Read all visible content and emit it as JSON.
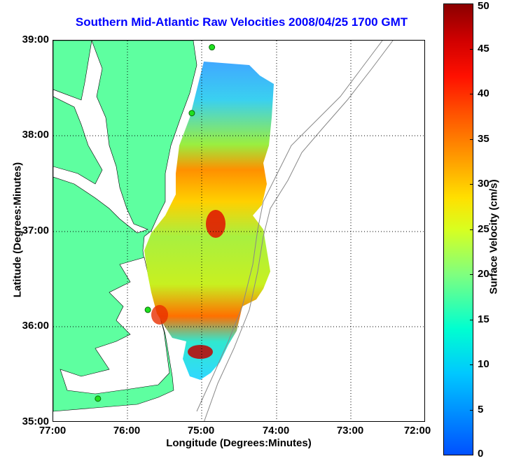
{
  "title": "Southern Mid-Atlantic Raw Velocities 2008/04/25 1700 GMT",
  "axes": {
    "xlabel": "Longitude (Degrees:Minutes)",
    "ylabel": "Latitude (Degrees:Minutes)",
    "xticks": [
      "77:00",
      "76:00",
      "75:00",
      "74:00",
      "73:00",
      "72:00"
    ],
    "yticks": [
      "39:00",
      "38:00",
      "37:00",
      "36:00",
      "35:00"
    ],
    "xlim": [
      -77,
      -72
    ],
    "ylim": [
      35,
      39
    ]
  },
  "colorbar": {
    "label": "Surface Velocity (cm/s)",
    "ticks": [
      "50",
      "45",
      "40",
      "35",
      "30",
      "25",
      "20",
      "15",
      "10",
      "5",
      "0"
    ],
    "range": [
      0,
      50
    ]
  },
  "colors": {
    "land": "#5effa0",
    "water": "#ffffff",
    "title": "#0000ff",
    "station": "#1fe01f"
  },
  "stations": [
    {
      "lon": -74.87,
      "lat": 38.93
    },
    {
      "lon": -75.14,
      "lat": 38.24
    },
    {
      "lon": -75.73,
      "lat": 36.18
    },
    {
      "lon": -76.4,
      "lat": 35.25
    }
  ]
}
